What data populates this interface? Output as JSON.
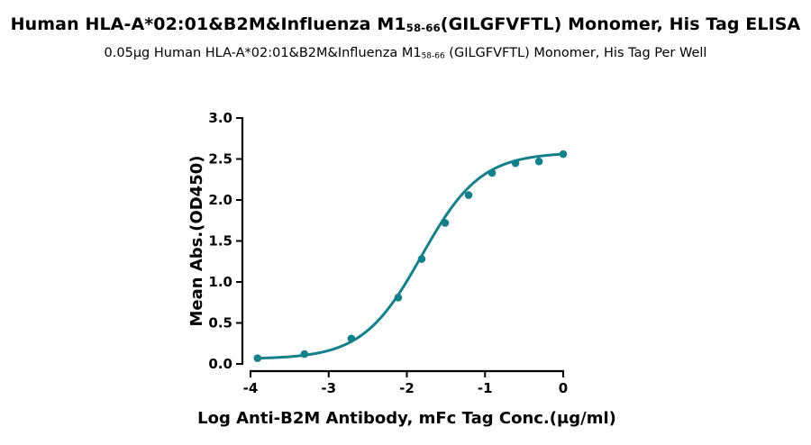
{
  "header": {
    "title_part1": "Human HLA-A*02:01&B2M&Influenza M1",
    "title_sub": "58-66",
    "title_part2": "(GILGFVFTL) Monomer, His Tag ELISA",
    "subtitle_part1": "0.05μg Human HLA-A*02:01&B2M&Influenza M1",
    "subtitle_sub": "58-66",
    "subtitle_part2": " (GILGFVFTL) Monomer, His Tag Per Well"
  },
  "colors": {
    "series": "#14808a",
    "axis": "#000000"
  },
  "chart_data": {
    "type": "scatter",
    "title": "Human HLA-A*02:01&B2M&Influenza M158-66(GILGFVFTL) Monomer, His Tag ELISA",
    "subtitle": "0.05μg Human HLA-A*02:01&B2M&Influenza M158-66 (GILGFVFTL) Monomer, His Tag Per Well",
    "xlabel": "Log Anti-B2M Antibody, mFc Tag Conc.(μg/ml)",
    "ylabel": "Mean Abs.(OD450)",
    "xlim": [
      -4,
      0
    ],
    "ylim": [
      0,
      3.0
    ],
    "xticks": [
      -4,
      -3,
      -2,
      -1,
      0
    ],
    "yticks": [
      0.0,
      0.5,
      1.0,
      1.5,
      2.0,
      2.5,
      3.0
    ],
    "xtick_labels": [
      "-4",
      "-3",
      "-2",
      "-1",
      "0"
    ],
    "ytick_labels": [
      "0.0",
      "0.5",
      "1.0",
      "1.5",
      "2.0",
      "2.5",
      "3.0"
    ],
    "grid": false,
    "series": [
      {
        "x": [
          -3.91,
          -3.31,
          -2.71,
          -2.11,
          -1.81,
          -1.51,
          -1.21,
          -0.91,
          -0.61,
          -0.31,
          0.0
        ],
        "y": [
          0.07,
          0.12,
          0.31,
          0.81,
          1.28,
          1.72,
          2.06,
          2.33,
          2.45,
          2.47,
          2.56
        ]
      }
    ],
    "fit_curve": {
      "model": "4PL",
      "bottom": 0.06,
      "top": 2.58,
      "logEC50": -1.81,
      "hill": 1.15
    }
  }
}
